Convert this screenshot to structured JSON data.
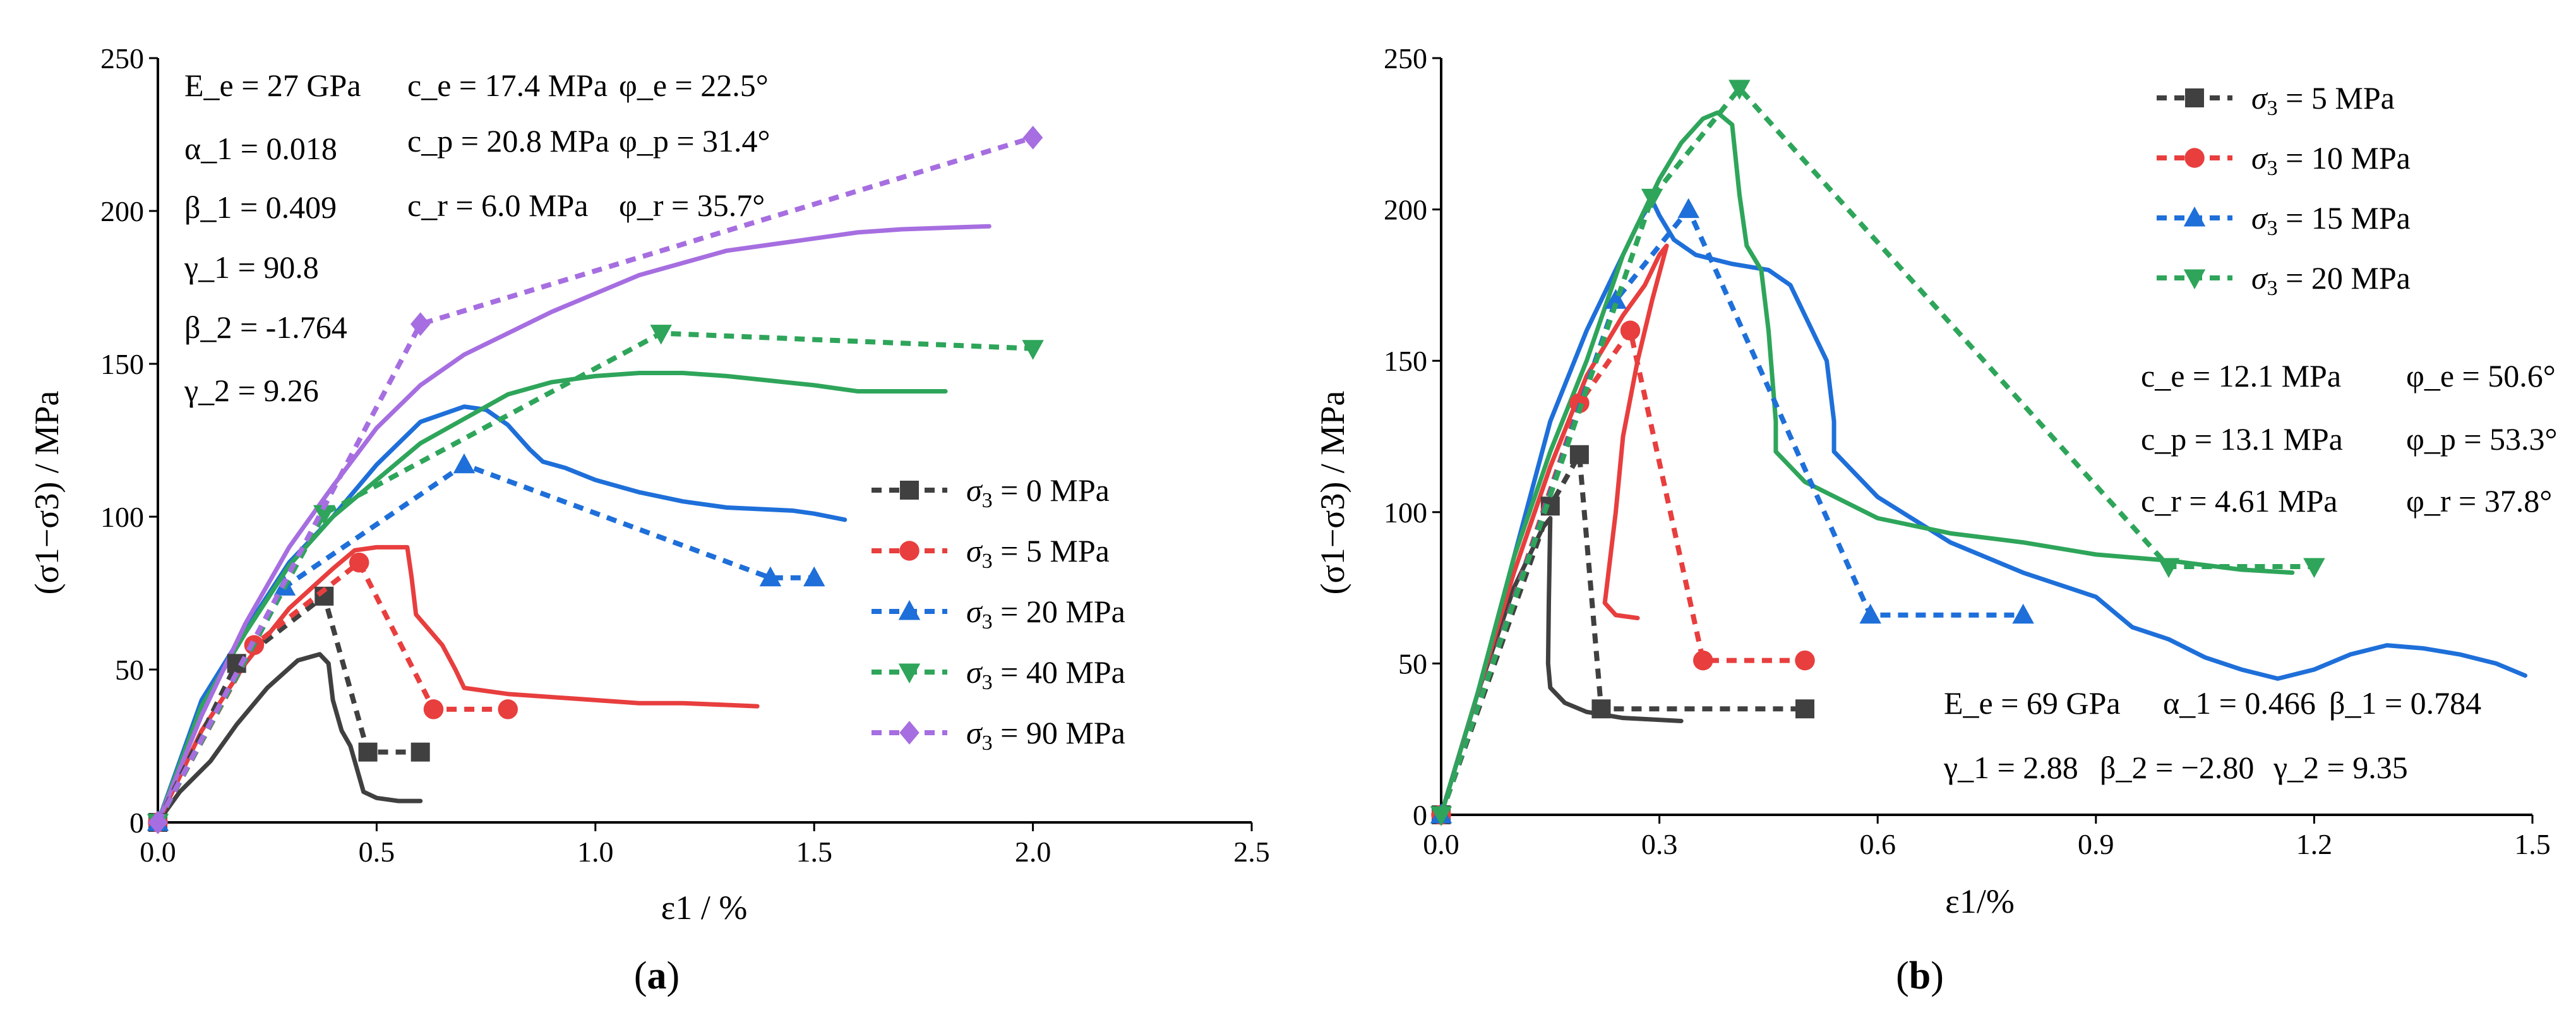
{
  "colors": {
    "gray": "#404040",
    "red": "#e83e3e",
    "blue": "#1e6fd9",
    "green": "#2ea55a",
    "purple": "#a66ee0"
  },
  "chart_data": [
    {
      "id": "a",
      "type": "line",
      "caption_open": "(",
      "caption_letter": "a",
      "caption_close": ")",
      "title": "",
      "xlabel": "ε1 / %",
      "ylabel": "(σ1−σ3) / MPa",
      "xlim": [
        0,
        2.5
      ],
      "ylim": [
        0,
        250
      ],
      "xticks": [
        0,
        0.5,
        1.0,
        1.5,
        2.0,
        2.5
      ],
      "xtick_labels": [
        "0.0",
        "0.5",
        "1.0",
        "1.5",
        "2.0",
        "2.5"
      ],
      "yticks": [
        0,
        50,
        100,
        150,
        200,
        250
      ],
      "ytick_labels": [
        "0",
        "50",
        "100",
        "150",
        "200",
        "250"
      ],
      "legend_position": "center-right",
      "annotations": [
        "E_e = 27 GPa",
        "c_e = 17.4 MPa",
        "φ_e = 22.5°",
        "α_1 = 0.018",
        "c_p = 20.8 MPa",
        "φ_p = 31.4°",
        "β_1 = 0.409",
        "c_r = 6.0 MPa",
        "φ_r = 35.7°",
        "γ_1  = 90.8",
        "β_2 = -1.764",
        "γ_2 = 9.26"
      ],
      "model_series": [
        {
          "name": "σ3 = 0 MPa",
          "color": "gray",
          "legend": "0 MPa",
          "points": [
            [
              0,
              0
            ],
            [
              0.18,
              52
            ],
            [
              0.38,
              74
            ],
            [
              0.48,
              23
            ],
            [
              0.6,
              23
            ]
          ]
        },
        {
          "name": "σ3 = 5 MPa",
          "color": "red",
          "legend": "5 MPa",
          "points": [
            [
              0,
              0
            ],
            [
              0.22,
              58
            ],
            [
              0.46,
              85
            ],
            [
              0.63,
              37
            ],
            [
              0.8,
              37
            ]
          ]
        },
        {
          "name": "σ3 = 20 MPa",
          "color": "blue",
          "legend": "20 MPa",
          "points": [
            [
              0,
              0
            ],
            [
              0.29,
              77
            ],
            [
              0.7,
              117
            ],
            [
              1.4,
              80
            ],
            [
              1.5,
              80
            ]
          ]
        },
        {
          "name": "σ3 = 40 MPa",
          "color": "green",
          "legend": "40 MPa",
          "points": [
            [
              0,
              0
            ],
            [
              0.38,
              101
            ],
            [
              1.15,
              160
            ],
            [
              2.0,
              155
            ]
          ]
        },
        {
          "name": "σ3 = 90 MPa",
          "color": "purple",
          "legend": "90 MPa",
          "points": [
            [
              0,
              0
            ],
            [
              0.6,
              163
            ],
            [
              2.0,
              224
            ]
          ]
        }
      ],
      "test_curves": [
        {
          "name": "σ3 = 0 MPa test",
          "color": "gray",
          "points": [
            [
              0,
              0
            ],
            [
              0.05,
              10
            ],
            [
              0.12,
              20
            ],
            [
              0.18,
              32
            ],
            [
              0.25,
              44
            ],
            [
              0.32,
              53
            ],
            [
              0.37,
              55
            ],
            [
              0.39,
              52
            ],
            [
              0.4,
              40
            ],
            [
              0.42,
              30
            ],
            [
              0.44,
              25
            ],
            [
              0.46,
              15
            ],
            [
              0.47,
              10
            ],
            [
              0.5,
              8
            ],
            [
              0.55,
              7
            ],
            [
              0.6,
              7
            ]
          ]
        },
        {
          "name": "σ3 = 5 MPa test",
          "color": "red",
          "points": [
            [
              0,
              0
            ],
            [
              0.1,
              30
            ],
            [
              0.2,
              52
            ],
            [
              0.3,
              70
            ],
            [
              0.4,
              83
            ],
            [
              0.45,
              89
            ],
            [
              0.5,
              90
            ],
            [
              0.57,
              90
            ],
            [
              0.58,
              80
            ],
            [
              0.59,
              68
            ],
            [
              0.62,
              63
            ],
            [
              0.65,
              58
            ],
            [
              0.68,
              50
            ],
            [
              0.7,
              44
            ],
            [
              0.8,
              42
            ],
            [
              0.9,
              41
            ],
            [
              1.0,
              40
            ],
            [
              1.1,
              39
            ],
            [
              1.2,
              39
            ],
            [
              1.37,
              38
            ]
          ]
        },
        {
          "name": "σ3 = 20 MPa test",
          "color": "blue",
          "points": [
            [
              0,
              0
            ],
            [
              0.1,
              40
            ],
            [
              0.2,
              63
            ],
            [
              0.3,
              85
            ],
            [
              0.4,
              100
            ],
            [
              0.5,
              117
            ],
            [
              0.6,
              131
            ],
            [
              0.7,
              136
            ],
            [
              0.75,
              135
            ],
            [
              0.8,
              130
            ],
            [
              0.85,
              122
            ],
            [
              0.88,
              118
            ],
            [
              0.93,
              116
            ],
            [
              1.0,
              112
            ],
            [
              1.1,
              108
            ],
            [
              1.2,
              105
            ],
            [
              1.3,
              103
            ],
            [
              1.45,
              102
            ],
            [
              1.5,
              101
            ],
            [
              1.57,
              99
            ]
          ]
        },
        {
          "name": "σ3 = 40 MPa test",
          "color": "green",
          "points": [
            [
              0,
              0
            ],
            [
              0.1,
              38
            ],
            [
              0.2,
              62
            ],
            [
              0.3,
              84
            ],
            [
              0.4,
              100
            ],
            [
              0.5,
              112
            ],
            [
              0.6,
              124
            ],
            [
              0.7,
              132
            ],
            [
              0.8,
              140
            ],
            [
              0.9,
              144
            ],
            [
              1.0,
              146
            ],
            [
              1.1,
              147
            ],
            [
              1.2,
              147
            ],
            [
              1.3,
              146
            ],
            [
              1.5,
              143
            ],
            [
              1.6,
              141
            ],
            [
              1.8,
              141
            ]
          ]
        },
        {
          "name": "σ3 = 90 MPa test",
          "color": "purple",
          "points": [
            [
              0,
              0
            ],
            [
              0.1,
              35
            ],
            [
              0.2,
              65
            ],
            [
              0.3,
              90
            ],
            [
              0.4,
              110
            ],
            [
              0.5,
              129
            ],
            [
              0.6,
              143
            ],
            [
              0.7,
              153
            ],
            [
              0.8,
              160
            ],
            [
              0.9,
              167
            ],
            [
              1.0,
              173
            ],
            [
              1.1,
              179
            ],
            [
              1.2,
              183
            ],
            [
              1.3,
              187
            ],
            [
              1.4,
              189
            ],
            [
              1.5,
              191
            ],
            [
              1.6,
              193
            ],
            [
              1.7,
              194
            ],
            [
              1.9,
              195
            ]
          ]
        }
      ]
    },
    {
      "id": "b",
      "type": "line",
      "caption_open": "(",
      "caption_letter": "b",
      "caption_close": ")",
      "title": "",
      "xlabel": "ε1/%",
      "ylabel": "(σ1−σ3) / MPa",
      "xlim": [
        0,
        1.5
      ],
      "ylim": [
        0,
        250
      ],
      "xticks": [
        0,
        0.3,
        0.6,
        0.9,
        1.2,
        1.5
      ],
      "xtick_labels": [
        "0.0",
        "0.3",
        "0.6",
        "0.9",
        "1.2",
        "1.5"
      ],
      "yticks": [
        0,
        50,
        100,
        150,
        200,
        250
      ],
      "ytick_labels": [
        "0",
        "50",
        "100",
        "150",
        "200",
        "250"
      ],
      "legend_position": "top-right",
      "annotations": [
        "c_e = 12.1 MPa",
        "φ_e = 50.6°",
        "c_p = 13.1 MPa",
        "φ_p = 53.3°",
        "c_r = 4.61 MPa",
        "φ_r = 37.8°",
        "E_e = 69 GPa",
        "α_1 = 0.466",
        "β_1 = 0.784",
        "γ_1 = 2.88",
        "β_2 = −2.80",
        "γ_2 = 9.35"
      ],
      "model_series": [
        {
          "name": "σ3 = 5 MPa",
          "color": "gray",
          "legend": "5 MPa",
          "points": [
            [
              0,
              0
            ],
            [
              0.15,
              102
            ],
            [
              0.19,
              119
            ],
            [
              0.22,
              35
            ],
            [
              0.5,
              35
            ]
          ]
        },
        {
          "name": "σ3 = 10 MPa",
          "color": "red",
          "legend": "10 MPa",
          "points": [
            [
              0,
              0
            ],
            [
              0.19,
              136
            ],
            [
              0.26,
              160
            ],
            [
              0.36,
              51
            ],
            [
              0.5,
              51
            ]
          ]
        },
        {
          "name": "σ3 = 15 MPa",
          "color": "blue",
          "legend": "15 MPa",
          "points": [
            [
              0,
              0
            ],
            [
              0.24,
              170
            ],
            [
              0.34,
              200
            ],
            [
              0.59,
              66
            ],
            [
              0.8,
              66
            ]
          ]
        },
        {
          "name": "σ3 = 20 MPa",
          "color": "green",
          "legend": "20 MPa",
          "points": [
            [
              0,
              0
            ],
            [
              0.29,
              204
            ],
            [
              0.41,
              240
            ],
            [
              1.0,
              82
            ],
            [
              1.2,
              82
            ]
          ]
        }
      ],
      "test_curves": [
        {
          "name": "σ3 = 5 MPa test",
          "color": "gray",
          "points": [
            [
              0,
              0
            ],
            [
              0.05,
              40
            ],
            [
              0.1,
              75
            ],
            [
              0.14,
              95
            ],
            [
              0.15,
              98
            ],
            [
              0.148,
              70
            ],
            [
              0.147,
              50
            ],
            [
              0.15,
              42
            ],
            [
              0.17,
              37
            ],
            [
              0.2,
              34
            ],
            [
              0.25,
              32
            ],
            [
              0.33,
              31
            ]
          ]
        },
        {
          "name": "σ3 = 10 MPa test",
          "color": "red",
          "points": [
            [
              0,
              0
            ],
            [
              0.05,
              40
            ],
            [
              0.1,
              80
            ],
            [
              0.15,
              115
            ],
            [
              0.2,
              145
            ],
            [
              0.25,
              165
            ],
            [
              0.28,
              175
            ],
            [
              0.3,
              185
            ],
            [
              0.31,
              188
            ],
            [
              0.29,
              170
            ],
            [
              0.27,
              150
            ],
            [
              0.25,
              125
            ],
            [
              0.24,
              100
            ],
            [
              0.23,
              80
            ],
            [
              0.225,
              70
            ],
            [
              0.24,
              66
            ],
            [
              0.27,
              65
            ]
          ]
        },
        {
          "name": "σ3 = 15 MPa test",
          "color": "blue",
          "points": [
            [
              0,
              0
            ],
            [
              0.05,
              40
            ],
            [
              0.1,
              85
            ],
            [
              0.15,
              130
            ],
            [
              0.2,
              160
            ],
            [
              0.25,
              185
            ],
            [
              0.27,
              195
            ],
            [
              0.29,
              203
            ],
            [
              0.3,
              198
            ],
            [
              0.32,
              190
            ],
            [
              0.35,
              185
            ],
            [
              0.4,
              182
            ],
            [
              0.45,
              180
            ],
            [
              0.48,
              175
            ],
            [
              0.5,
              165
            ],
            [
              0.53,
              150
            ],
            [
              0.54,
              130
            ],
            [
              0.54,
              120
            ],
            [
              0.6,
              105
            ],
            [
              0.7,
              90
            ],
            [
              0.8,
              80
            ],
            [
              0.9,
              72
            ],
            [
              0.95,
              62
            ],
            [
              1.0,
              58
            ],
            [
              1.05,
              52
            ],
            [
              1.1,
              48
            ],
            [
              1.15,
              45
            ],
            [
              1.2,
              48
            ],
            [
              1.25,
              53
            ],
            [
              1.3,
              56
            ],
            [
              1.35,
              55
            ],
            [
              1.4,
              53
            ],
            [
              1.45,
              50
            ],
            [
              1.49,
              46
            ]
          ]
        },
        {
          "name": "σ3 = 20 MPa test",
          "color": "green",
          "points": [
            [
              0,
              0
            ],
            [
              0.05,
              40
            ],
            [
              0.1,
              85
            ],
            [
              0.15,
              120
            ],
            [
              0.2,
              150
            ],
            [
              0.25,
              185
            ],
            [
              0.3,
              210
            ],
            [
              0.33,
              222
            ],
            [
              0.36,
              230
            ],
            [
              0.38,
              232
            ],
            [
              0.4,
              228
            ],
            [
              0.41,
              205
            ],
            [
              0.42,
              188
            ],
            [
              0.44,
              180
            ],
            [
              0.45,
              160
            ],
            [
              0.46,
              130
            ],
            [
              0.46,
              120
            ],
            [
              0.5,
              110
            ],
            [
              0.6,
              98
            ],
            [
              0.7,
              93
            ],
            [
              0.8,
              90
            ],
            [
              0.9,
              86
            ],
            [
              1.0,
              84
            ],
            [
              1.1,
              81
            ],
            [
              1.17,
              80
            ]
          ]
        }
      ]
    }
  ]
}
